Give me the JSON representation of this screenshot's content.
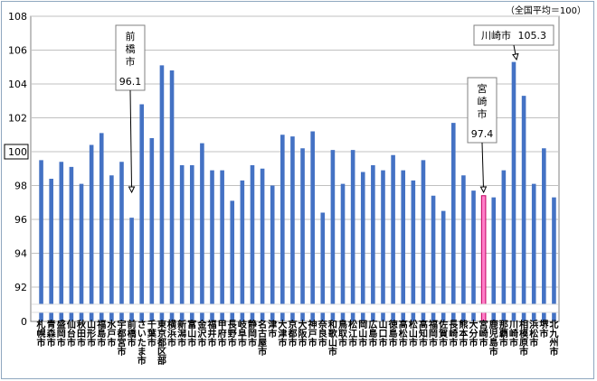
{
  "note": "（全国平均＝100）",
  "chart_data": {
    "type": "bar",
    "title": "",
    "xlabel": "",
    "ylabel": "",
    "ylim": [
      0,
      108
    ],
    "yticks": [
      0,
      92,
      94,
      96,
      98,
      100,
      102,
      104,
      106,
      108
    ],
    "axis_break": true,
    "grid": true,
    "colors": {
      "bar": "#4472c4",
      "highlight": "#ff7fc8",
      "highlight_border": "#c00060",
      "grid": "#c0c0c0"
    },
    "categories": [
      "札幌市",
      "青森市",
      "盛岡市",
      "仙台市",
      "秋田市",
      "山形市",
      "福島市",
      "水戸市",
      "宇都宮市",
      "前橋市",
      "さいたま市",
      "千葉市",
      "東京都区部",
      "横浜市",
      "新潟市",
      "富山市",
      "金沢市",
      "福井市",
      "甲府市",
      "長野市",
      "岐阜市",
      "静岡市",
      "名古屋市",
      "津市",
      "大津市",
      "京都市",
      "大阪市",
      "神戸市",
      "奈良市",
      "和歌山市",
      "鳥取市",
      "松江市",
      "岡山市",
      "広島市",
      "山口市",
      "徳島市",
      "高松市",
      "松山市",
      "高知市",
      "福岡市",
      "佐賀市",
      "長崎市",
      "熊本市",
      "大分市",
      "宮崎市",
      "鹿児島市",
      "那覇市",
      "川崎市",
      "相模原市",
      "浜松市",
      "堺市",
      "北九州市"
    ],
    "values": [
      99.5,
      98.4,
      99.4,
      99.1,
      98.1,
      100.4,
      101.1,
      98.6,
      99.4,
      96.1,
      102.8,
      100.8,
      105.1,
      104.8,
      99.2,
      99.2,
      100.5,
      98.9,
      98.9,
      97.1,
      98.3,
      99.2,
      99.0,
      98.0,
      101.0,
      100.9,
      100.2,
      101.2,
      96.4,
      100.1,
      98.1,
      100.1,
      98.8,
      99.2,
      98.9,
      99.8,
      98.9,
      98.3,
      99.5,
      97.4,
      96.5,
      101.7,
      98.6,
      97.7,
      97.4,
      97.3,
      98.9,
      105.3,
      103.3,
      98.1,
      100.2,
      97.3
    ],
    "highlight_index": 44,
    "callouts": [
      {
        "label": "前橋市",
        "value_text": "96.1",
        "index": 9
      },
      {
        "label": "宮崎市",
        "value_text": "97.4",
        "index": 44
      },
      {
        "label": "川崎市",
        "value_text": "105.3",
        "index": 47
      }
    ]
  }
}
